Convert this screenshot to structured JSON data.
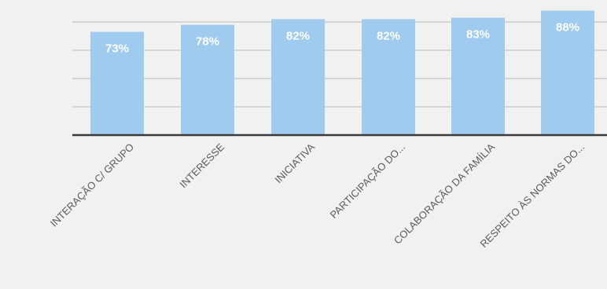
{
  "chart_data": {
    "type": "bar",
    "categories": [
      "INTERAÇÃO C/ GRUPO",
      "INTERESSE",
      "INICIATIVA",
      "PARTICIPAÇÃO DO...",
      "COLABORAÇÃO DA FAMÍLIA",
      "RESPEITO ÀS NORMAS DO..."
    ],
    "values": [
      73,
      78,
      82,
      82,
      83,
      88
    ],
    "data_labels": [
      "73%",
      "78%",
      "82%",
      "82%",
      "83%",
      "88%"
    ],
    "ylim": [
      0,
      90
    ],
    "grid": true,
    "bar_color": "#9fcbef",
    "label_color": "#ffffff"
  }
}
